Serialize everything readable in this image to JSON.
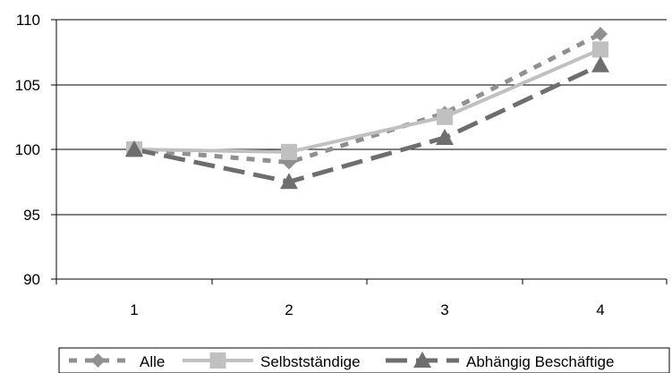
{
  "chart_data": {
    "type": "line",
    "title": "",
    "xlabel": "",
    "ylabel": "",
    "categories": [
      "1",
      "2",
      "3",
      "4"
    ],
    "ylim": [
      90,
      110
    ],
    "yticks": [
      "90",
      "95",
      "100",
      "105",
      "110"
    ],
    "grid": "horizontal",
    "legend_position": "bottom",
    "series": [
      {
        "name": "Alle",
        "values": [
          100,
          99.0,
          102.8,
          108.9
        ],
        "color": "#909090",
        "line_style": "dotted",
        "marker": "diamond"
      },
      {
        "name": "Selbstständige",
        "values": [
          100,
          99.8,
          102.5,
          107.7
        ],
        "color": "#c0c0c0",
        "line_style": "solid",
        "marker": "square"
      },
      {
        "name": "Abhängig Beschäftige",
        "values": [
          100,
          97.5,
          100.9,
          106.5
        ],
        "color": "#6e6e6e",
        "line_style": "dashed",
        "marker": "triangle"
      }
    ]
  }
}
